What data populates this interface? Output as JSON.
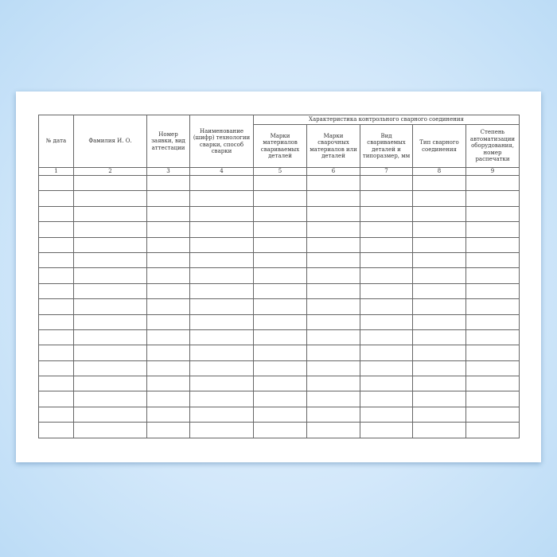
{
  "table": {
    "group_header": "Характеристика контрольного сварного соединения",
    "columns": [
      "№ дата",
      "Фамилия И. О.",
      "Номер заявки, вид аттестации",
      "Наименование (шифр) технологии сварки, способ сварки",
      "Марки материалов свариваемых деталей",
      "Марки сварочных материалов или деталей",
      "Вид свариваемых деталей и типоразмер, мм",
      "Тип сварного соединения",
      "Степень автоматизации оборудования, номер распечатки"
    ],
    "column_numbers": [
      "1",
      "2",
      "3",
      "4",
      "5",
      "6",
      "7",
      "8",
      "9"
    ],
    "empty_rows": 17
  }
}
